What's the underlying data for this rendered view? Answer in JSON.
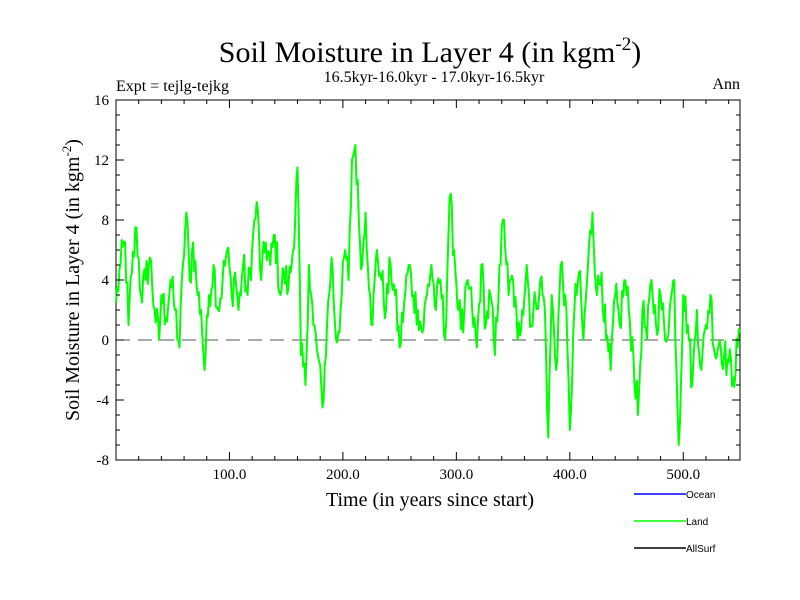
{
  "chart_data": {
    "type": "line",
    "title": "Soil Moisture in Layer 4 (in kgm",
    "title_sup": "-2",
    "title_close": ")",
    "subtitle": "16.5kyr-16.0kyr - 17.0kyr-16.5kyr",
    "expt_label": "Expt = tejlg-tejkg",
    "season_label": "Ann",
    "xlabel": "Time (in years since start)",
    "ylabel": "Soil Moisture in Layer 4 (in kgm",
    "ylabel_sup": "-2",
    "ylabel_close": ")",
    "xlim": [
      0,
      550
    ],
    "ylim": [
      -8,
      16
    ],
    "x_ticks": [
      100,
      200,
      300,
      400,
      500
    ],
    "x_tick_labels": [
      "100.0",
      "200.0",
      "300.0",
      "400.0",
      "500.0"
    ],
    "y_ticks": [
      -8,
      -4,
      0,
      4,
      8,
      12,
      16
    ],
    "y_tick_labels": [
      "-8",
      "-4",
      "0",
      "4",
      "8",
      "12",
      "16"
    ],
    "zero_line": 0,
    "legend": [
      {
        "name": "Ocean",
        "color": "#0000ff"
      },
      {
        "name": "Land",
        "color": "#00ff00"
      },
      {
        "name": "AllSurf",
        "color": "#000000"
      }
    ],
    "series": [
      {
        "name": "Land",
        "color": "#00ff00",
        "keypoints": [
          [
            0,
            2.5
          ],
          [
            4,
            5
          ],
          [
            8,
            6.5
          ],
          [
            11,
            1
          ],
          [
            14,
            4.5
          ],
          [
            18,
            7.5
          ],
          [
            22,
            3
          ],
          [
            26,
            4
          ],
          [
            30,
            5.5
          ],
          [
            34,
            2
          ],
          [
            38,
            0
          ],
          [
            40,
            3
          ],
          [
            44,
            1.5
          ],
          [
            48,
            4
          ],
          [
            52,
            2
          ],
          [
            56,
            -0.5
          ],
          [
            59,
            5
          ],
          [
            62,
            8.5
          ],
          [
            65,
            4
          ],
          [
            68,
            6.5
          ],
          [
            72,
            3
          ],
          [
            75,
            2
          ],
          [
            78,
            -2
          ],
          [
            82,
            3
          ],
          [
            86,
            5
          ],
          [
            90,
            2
          ],
          [
            94,
            4
          ],
          [
            98,
            6
          ],
          [
            102,
            3
          ],
          [
            105,
            4.5
          ],
          [
            108,
            2
          ],
          [
            112,
            5
          ],
          [
            116,
            3
          ],
          [
            120,
            6
          ],
          [
            124,
            9.2
          ],
          [
            128,
            4
          ],
          [
            132,
            6.5
          ],
          [
            136,
            5
          ],
          [
            140,
            7
          ],
          [
            145,
            3
          ],
          [
            148,
            4.5
          ],
          [
            152,
            3.5
          ],
          [
            156,
            6
          ],
          [
            160,
            11.5
          ],
          [
            163,
            -1
          ],
          [
            167,
            -3
          ],
          [
            170,
            5
          ],
          [
            174,
            1
          ],
          [
            178,
            -1
          ],
          [
            182,
            -4.5
          ],
          [
            186,
            1
          ],
          [
            190,
            5.5
          ],
          [
            194,
            0
          ],
          [
            198,
            2
          ],
          [
            202,
            6
          ],
          [
            205,
            4
          ],
          [
            208,
            12
          ],
          [
            211,
            13
          ],
          [
            214,
            8
          ],
          [
            217,
            5
          ],
          [
            220,
            8.5
          ],
          [
            224,
            3
          ],
          [
            226,
            1
          ],
          [
            230,
            6
          ],
          [
            234,
            4
          ],
          [
            238,
            2
          ],
          [
            242,
            5
          ],
          [
            246,
            3
          ],
          [
            250,
            -0.5
          ],
          [
            254,
            2.5
          ],
          [
            258,
            5
          ],
          [
            262,
            3
          ],
          [
            266,
            2
          ],
          [
            270,
            0.5
          ],
          [
            274,
            3
          ],
          [
            278,
            5
          ],
          [
            282,
            2
          ],
          [
            286,
            4
          ],
          [
            290,
            0
          ],
          [
            294,
            9.5
          ],
          [
            298,
            6
          ],
          [
            302,
            2
          ],
          [
            306,
            0.5
          ],
          [
            310,
            4
          ],
          [
            314,
            2
          ],
          [
            318,
            -0.5
          ],
          [
            322,
            5
          ],
          [
            326,
            1
          ],
          [
            330,
            3
          ],
          [
            334,
            -1
          ],
          [
            338,
            5
          ],
          [
            342,
            8
          ],
          [
            346,
            3
          ],
          [
            350,
            4
          ],
          [
            354,
            0
          ],
          [
            358,
            2
          ],
          [
            362,
            5
          ],
          [
            366,
            1
          ],
          [
            370,
            2.5
          ],
          [
            374,
            4
          ],
          [
            378,
            2
          ],
          [
            381,
            -6.5
          ],
          [
            384,
            3
          ],
          [
            388,
            -2
          ],
          [
            392,
            5
          ],
          [
            396,
            3
          ],
          [
            400,
            -6
          ],
          [
            404,
            2
          ],
          [
            408,
            4.5
          ],
          [
            412,
            0
          ],
          [
            416,
            5
          ],
          [
            420,
            8.5
          ],
          [
            424,
            3
          ],
          [
            428,
            4.5
          ],
          [
            432,
            0
          ],
          [
            436,
            -2
          ],
          [
            440,
            3
          ],
          [
            444,
            1
          ],
          [
            448,
            4
          ],
          [
            452,
            2
          ],
          [
            456,
            -1
          ],
          [
            460,
            -5
          ],
          [
            464,
            2
          ],
          [
            468,
            0
          ],
          [
            472,
            4
          ],
          [
            476,
            1
          ],
          [
            480,
            3
          ],
          [
            484,
            0
          ],
          [
            488,
            2
          ],
          [
            492,
            4
          ],
          [
            496,
            -7
          ],
          [
            500,
            3
          ],
          [
            504,
            1
          ],
          [
            508,
            -3
          ],
          [
            512,
            2
          ],
          [
            516,
            -2
          ],
          [
            520,
            1
          ],
          [
            524,
            3
          ],
          [
            528,
            -1
          ],
          [
            532,
            0
          ],
          [
            536,
            -1
          ],
          [
            540,
            -1.5
          ],
          [
            544,
            -2.5
          ],
          [
            548,
            -0.5
          ],
          [
            550,
            0.5
          ]
        ]
      }
    ]
  }
}
